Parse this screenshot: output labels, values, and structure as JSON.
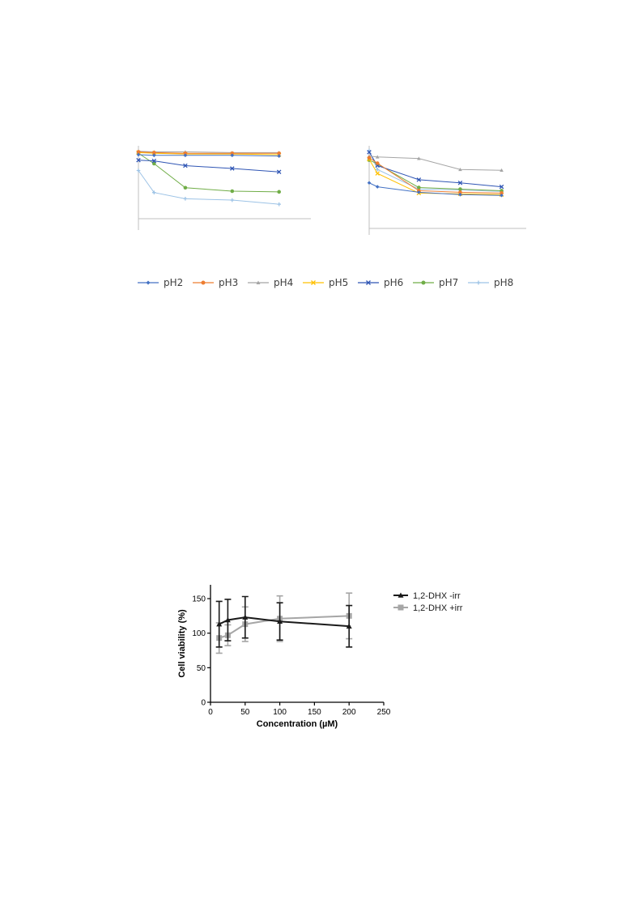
{
  "chart_data": [
    {
      "type": "line",
      "title": "",
      "xlabel": "",
      "ylabel": "",
      "x": [
        0,
        1,
        3,
        6,
        9
      ],
      "xlim": [
        0,
        10
      ],
      "ylim": [
        0,
        100
      ],
      "grid": false,
      "legend": "bottom (shared)",
      "series": [
        {
          "name": "pH2",
          "color": "#4472C4",
          "marker": "diamond",
          "values": [
            93,
            92,
            92,
            92,
            91
          ]
        },
        {
          "name": "pH3",
          "color": "#ED7D31",
          "marker": "circle",
          "values": [
            97,
            96,
            95,
            95,
            95
          ]
        },
        {
          "name": "pH4",
          "color": "#A5A5A5",
          "marker": "triangle",
          "values": [
            98,
            97,
            97,
            96,
            96
          ]
        },
        {
          "name": "pH5",
          "color": "#FFC000",
          "marker": "x",
          "values": [
            96,
            95,
            94,
            94,
            93
          ]
        },
        {
          "name": "pH6",
          "color": "#2F55B4",
          "marker": "x",
          "values": [
            85,
            84,
            77,
            73,
            68
          ]
        },
        {
          "name": "pH7",
          "color": "#70AD47",
          "marker": "circle",
          "values": [
            95,
            80,
            45,
            40,
            39
          ]
        },
        {
          "name": "pH8",
          "color": "#9DC3E6",
          "marker": "plus",
          "values": [
            70,
            38,
            29,
            27,
            21
          ]
        }
      ]
    },
    {
      "type": "line",
      "title": "",
      "xlabel": "",
      "ylabel": "",
      "x": [
        0,
        1,
        6,
        11,
        16
      ],
      "xlim": [
        0,
        18
      ],
      "ylim": [
        0,
        100
      ],
      "grid": false,
      "legend": "bottom (shared)",
      "series": [
        {
          "name": "pH2",
          "color": "#4472C4",
          "marker": "diamond",
          "values": [
            58,
            53,
            46,
            43,
            42
          ]
        },
        {
          "name": "pH3",
          "color": "#ED7D31",
          "marker": "circle",
          "values": [
            90,
            83,
            48,
            46,
            45
          ]
        },
        {
          "name": "pH4",
          "color": "#A5A5A5",
          "marker": "triangle",
          "values": [
            92,
            91,
            89,
            75,
            74
          ]
        },
        {
          "name": "pH5",
          "color": "#FFC000",
          "marker": "x",
          "values": [
            88,
            70,
            45,
            44,
            43
          ]
        },
        {
          "name": "pH6",
          "color": "#2F55B4",
          "marker": "x",
          "values": [
            97,
            80,
            62,
            58,
            53
          ]
        },
        {
          "name": "pH7",
          "color": "#70AD47",
          "marker": "circle",
          "values": [
            87,
            82,
            52,
            50,
            48
          ]
        },
        {
          "name": "pH8",
          "color": "#9DC3E6",
          "marker": "plus",
          "values": [
            99,
            75,
            50,
            49,
            47
          ]
        }
      ]
    },
    {
      "type": "line",
      "title": "",
      "xlabel": "Concentration (µM)",
      "ylabel": "Cell viability (%)",
      "xlim": [
        0,
        250
      ],
      "ylim": [
        0,
        170
      ],
      "xticks": [
        "0",
        "50",
        "100",
        "150",
        "200",
        "250"
      ],
      "yticks": [
        "0",
        "50",
        "100",
        "150"
      ],
      "grid": false,
      "legend": "top-right (outside)",
      "series": [
        {
          "name": "1,2-DHX -irr",
          "color": "#1a1a1a",
          "marker": "triangle",
          "x": [
            12.5,
            25,
            50,
            100,
            200
          ],
          "y": [
            113,
            119,
            123,
            117,
            110
          ],
          "err": [
            33,
            30,
            30,
            27,
            30
          ]
        },
        {
          "name": "1,2-DHX +irr",
          "color": "#a6a6a6",
          "marker": "square",
          "x": [
            12.5,
            25,
            50,
            100,
            200
          ],
          "y": [
            93,
            97,
            113,
            121,
            125
          ],
          "err": [
            22,
            15,
            25,
            33,
            33
          ]
        }
      ]
    }
  ]
}
